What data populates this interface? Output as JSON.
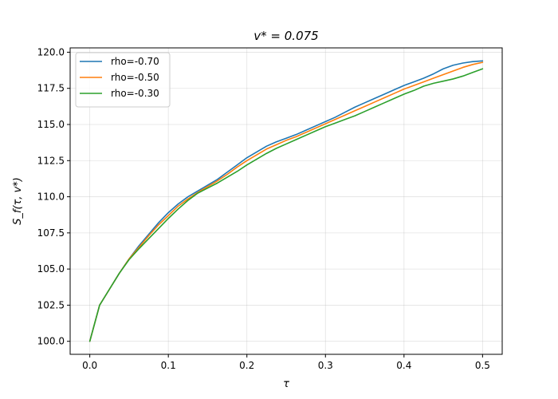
{
  "chart_data": {
    "type": "line",
    "title": "v* = 0.075",
    "xlabel": "τ",
    "ylabel": "S_f(τ, v*)",
    "xlim": [
      -0.025,
      0.525
    ],
    "ylim": [
      99.1,
      120.3
    ],
    "xticks": [
      0.0,
      0.1,
      0.2,
      0.3,
      0.4,
      0.5
    ],
    "xtick_labels": [
      "0.0",
      "0.1",
      "0.2",
      "0.3",
      "0.4",
      "0.5"
    ],
    "yticks": [
      100.0,
      102.5,
      105.0,
      107.5,
      110.0,
      112.5,
      115.0,
      117.5,
      120.0
    ],
    "ytick_labels": [
      "100.0",
      "102.5",
      "105.0",
      "107.5",
      "110.0",
      "112.5",
      "115.0",
      "117.5",
      "120.0"
    ],
    "grid": true,
    "legend_position": "top-left",
    "x": [
      0.0,
      0.0125,
      0.025,
      0.0375,
      0.05,
      0.0625,
      0.075,
      0.0875,
      0.1,
      0.1125,
      0.125,
      0.1375,
      0.15,
      0.1625,
      0.175,
      0.1875,
      0.2,
      0.2125,
      0.225,
      0.2375,
      0.25,
      0.2625,
      0.275,
      0.2875,
      0.3,
      0.3125,
      0.325,
      0.3375,
      0.35,
      0.3625,
      0.375,
      0.3875,
      0.4,
      0.4125,
      0.425,
      0.4375,
      0.45,
      0.4625,
      0.475,
      0.4875,
      0.5
    ],
    "series": [
      {
        "name": "rho=-0.70",
        "color": "#1f77b4",
        "values": [
          100.0,
          102.5,
          103.6,
          104.7,
          105.7,
          106.6,
          107.4,
          108.2,
          108.9,
          109.5,
          110.0,
          110.4,
          110.8,
          111.2,
          111.7,
          112.2,
          112.7,
          113.1,
          113.5,
          113.8,
          114.05,
          114.3,
          114.6,
          114.9,
          115.2,
          115.5,
          115.85,
          116.2,
          116.5,
          116.8,
          117.1,
          117.4,
          117.7,
          117.95,
          118.2,
          118.5,
          118.85,
          119.1,
          119.25,
          119.35,
          119.4
        ]
      },
      {
        "name": "rho=-0.50",
        "color": "#ff7f0e",
        "values": [
          100.0,
          102.5,
          103.6,
          104.7,
          105.7,
          106.5,
          107.3,
          108.05,
          108.7,
          109.35,
          109.85,
          110.3,
          110.7,
          111.1,
          111.55,
          112.05,
          112.5,
          112.9,
          113.3,
          113.6,
          113.9,
          114.15,
          114.45,
          114.75,
          115.05,
          115.35,
          115.65,
          115.95,
          116.25,
          116.55,
          116.85,
          117.15,
          117.45,
          117.7,
          117.95,
          118.2,
          118.45,
          118.7,
          118.95,
          119.15,
          119.3
        ]
      },
      {
        "name": "rho=-0.30",
        "color": "#2ca02c",
        "values": [
          100.0,
          102.5,
          103.6,
          104.7,
          105.65,
          106.4,
          107.1,
          107.8,
          108.5,
          109.15,
          109.75,
          110.25,
          110.6,
          110.95,
          111.35,
          111.75,
          112.2,
          112.6,
          113.0,
          113.35,
          113.65,
          113.95,
          114.25,
          114.55,
          114.85,
          115.1,
          115.35,
          115.6,
          115.9,
          116.2,
          116.5,
          116.8,
          117.1,
          117.35,
          117.65,
          117.85,
          118.0,
          118.15,
          118.35,
          118.6,
          118.85
        ]
      }
    ]
  }
}
